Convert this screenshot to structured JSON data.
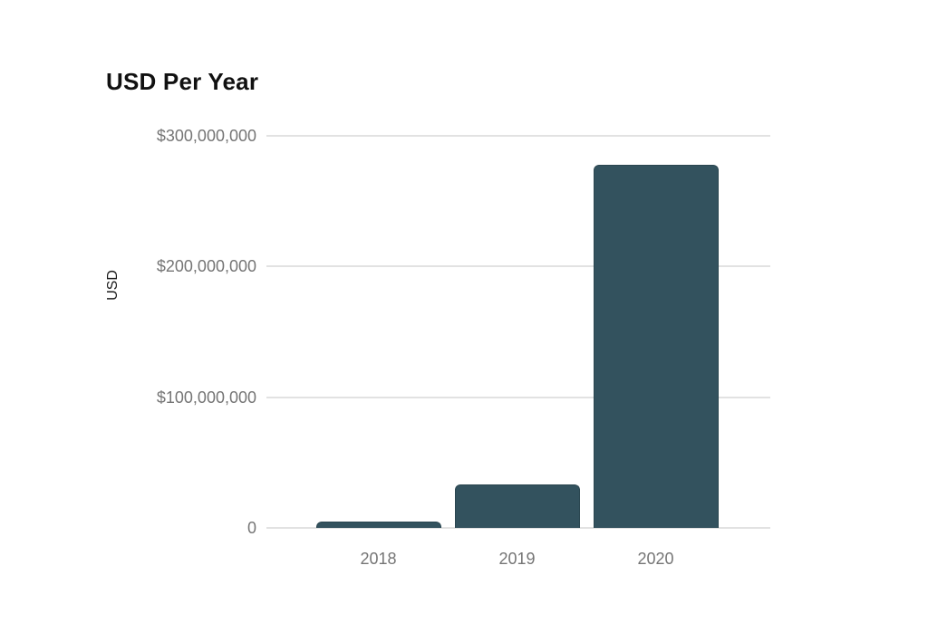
{
  "chart_data": {
    "type": "bar",
    "title": "USD Per Year",
    "ylabel": "USD",
    "xlabel": "",
    "categories": [
      "2018",
      "2019",
      "2020"
    ],
    "values": [
      5000000,
      33000000,
      278000000
    ],
    "ylim": [
      0,
      300000000
    ],
    "yticks": [
      {
        "value": 300000000,
        "label": "$300,000,000"
      },
      {
        "value": 200000000,
        "label": "$200,000,000"
      },
      {
        "value": 100000000,
        "label": "$100,000,000"
      },
      {
        "value": 0,
        "label": "0"
      }
    ],
    "grid": true,
    "legend": "none",
    "colors": {
      "bar": "#33525e",
      "bar_border": "#2b4650",
      "gridline": "#e2e2e2",
      "tick_label": "#757575",
      "title": "#111111",
      "axis_title": "#1a1a1a",
      "background": "#ffffff"
    }
  }
}
